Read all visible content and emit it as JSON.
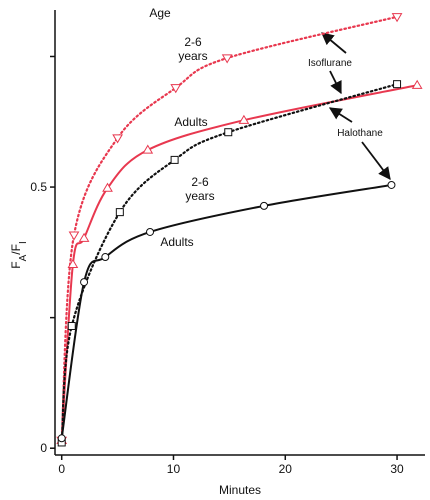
{
  "chart_data": {
    "type": "line",
    "xlabel": "Minutes",
    "ylabel": [
      "F",
      "A",
      "/F",
      "I"
    ],
    "xlim": [
      -0.6,
      32.5
    ],
    "ylim": [
      -0.013,
      0.839
    ],
    "xticks": [
      0,
      10,
      20,
      30
    ],
    "yticks": [
      0,
      0.5
    ],
    "yminor_ticks": [
      0.25,
      0.75
    ],
    "series": [
      {
        "name": "Isoflurane 2-6 years",
        "color": "#e8384f",
        "dash": "dotted",
        "marker": "triangle-down",
        "x": [
          0,
          1.1,
          5,
          10.2,
          14.8,
          30
        ],
        "values": [
          0.015,
          0.408,
          0.594,
          0.69,
          0.747,
          0.826
        ]
      },
      {
        "name": "Isoflurane adults",
        "color": "#e8384f",
        "dash": "solid",
        "marker": "triangle-up",
        "x": [
          0,
          1,
          2,
          4.1,
          7.7,
          16.3,
          31.8
        ],
        "values": [
          0.015,
          0.352,
          0.402,
          0.498,
          0.571,
          0.628,
          0.695
        ]
      },
      {
        "name": "Halothane 2-6 years",
        "color": "#111111",
        "dash": "dotted",
        "marker": "square",
        "x": [
          0,
          0.9,
          5.2,
          10.1,
          14.9,
          30
        ],
        "values": [
          0.011,
          0.234,
          0.452,
          0.552,
          0.605,
          0.697
        ]
      },
      {
        "name": "Halothane adults",
        "color": "#111111",
        "dash": "solid",
        "marker": "circle",
        "x": [
          0,
          2,
          3.9,
          7.9,
          18.1,
          29.5
        ],
        "values": [
          0.019,
          0.318,
          0.366,
          0.414,
          0.464,
          0.504
        ]
      }
    ],
    "annotations": [
      {
        "lines": [
          "Age"
        ]
      },
      {
        "lines": [
          "2-6",
          "years"
        ]
      },
      {
        "lines": [
          "Adults"
        ]
      },
      {
        "lines": [
          "2-6",
          "years"
        ]
      },
      {
        "lines": [
          "Adults"
        ]
      },
      {
        "lines": [
          "Isoflurane"
        ]
      },
      {
        "lines": [
          "Halothane"
        ]
      }
    ]
  }
}
